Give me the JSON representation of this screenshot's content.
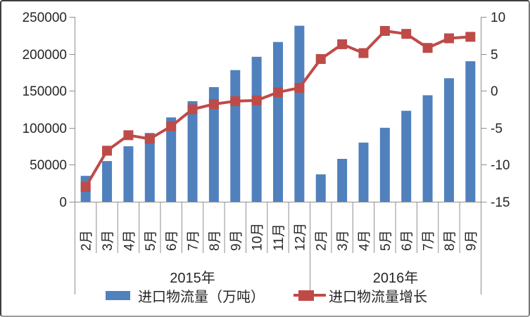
{
  "chart_data": {
    "type": "combo-bar-line",
    "title": "",
    "categories": [
      "2月",
      "3月",
      "4月",
      "5月",
      "6月",
      "7月",
      "8月",
      "9月",
      "10月",
      "11月",
      "12月",
      "2月",
      "3月",
      "4月",
      "5月",
      "6月",
      "7月",
      "8月",
      "9月"
    ],
    "year_groups": [
      {
        "label": "2015年",
        "months": 11
      },
      {
        "label": "2016年",
        "months": 8
      }
    ],
    "series": [
      {
        "name": "进口物流量（万吨）",
        "type": "bar",
        "axis": "left",
        "color": "#5081bd",
        "values": [
          35000,
          55000,
          75000,
          93000,
          114000,
          136000,
          155000,
          178000,
          196000,
          216000,
          238000,
          37000,
          58000,
          80000,
          100000,
          123000,
          144000,
          167000,
          190000
        ]
      },
      {
        "name": "进口物流量增长",
        "type": "line",
        "axis": "right",
        "color": "#be4b48",
        "values": [
          -13.0,
          -8.1,
          -6.0,
          -6.5,
          -4.8,
          -2.5,
          -1.8,
          -1.4,
          -1.3,
          -0.2,
          0.4,
          4.3,
          6.3,
          5.1,
          8.1,
          7.7,
          5.8,
          7.1,
          7.3
        ]
      }
    ],
    "left_axis": {
      "min": 0,
      "max": 250000,
      "ticks": [
        250000,
        200000,
        150000,
        100000,
        50000,
        0
      ]
    },
    "right_axis": {
      "min": -15,
      "max": 10,
      "ticks": [
        10,
        5,
        0,
        -5,
        -10,
        -15
      ]
    },
    "grid": false,
    "legend_position": "bottom"
  },
  "colors": {
    "bar": "#5081bd",
    "line": "#be4b48",
    "axis_line": "#8e8e8e",
    "text": "#262626",
    "background": "#ffffff"
  }
}
